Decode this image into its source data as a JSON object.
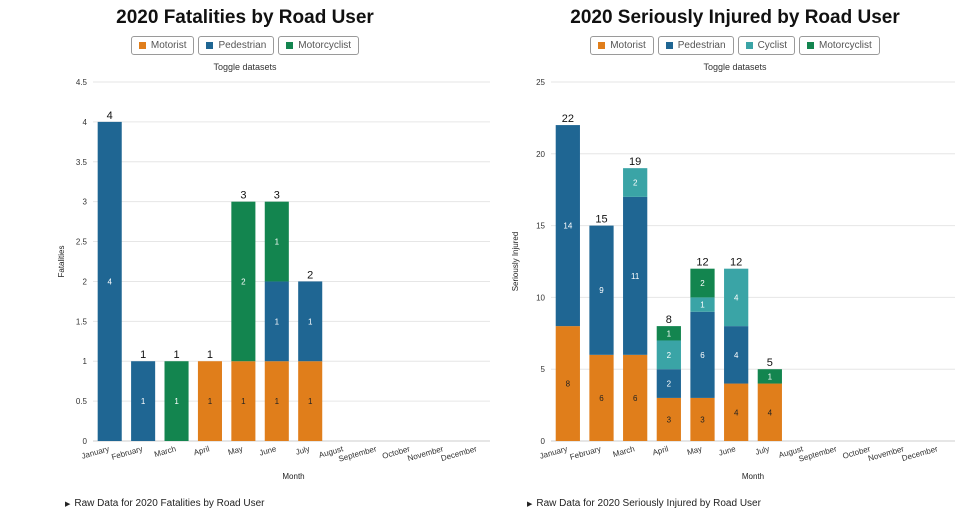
{
  "colors": {
    "motorist": "#e07e1b",
    "pedestrian": "#1f6693",
    "cyclist": "#3aa4a6",
    "motorcyclist": "#13854f",
    "grid": "#e6e6e6",
    "axis": "#555555"
  },
  "raw_toggle_icon": "triangle-right-icon",
  "fatalities": {
    "toggle_caption": "Toggle datasets",
    "raw_link": "Raw Data for 2020 Fatalities by Road User",
    "chart_data": {
      "type": "bar",
      "stacked": true,
      "title": "2020 Fatalities by Road User",
      "xlabel": "Month",
      "ylabel": "Fatalities",
      "ylim": [
        0,
        4.5
      ],
      "yticks": [
        "0",
        "0.5",
        "1",
        "1.5",
        "2",
        "2.5",
        "3",
        "3.5",
        "4",
        "4.5"
      ],
      "grid": true,
      "legend": "top",
      "categories": [
        "January",
        "February",
        "March",
        "April",
        "May",
        "June",
        "July",
        "August",
        "September",
        "October",
        "November",
        "December"
      ],
      "series": [
        {
          "name": "Motorist",
          "key": "motorist",
          "values": [
            0,
            0,
            0,
            1,
            1,
            1,
            1,
            0,
            0,
            0,
            0,
            0
          ]
        },
        {
          "name": "Pedestrian",
          "key": "pedestrian",
          "values": [
            4,
            1,
            0,
            0,
            0,
            1,
            1,
            0,
            0,
            0,
            0,
            0
          ]
        },
        {
          "name": "Motorcyclist",
          "key": "motorcyclist",
          "values": [
            0,
            0,
            1,
            0,
            2,
            1,
            0,
            0,
            0,
            0,
            0,
            0
          ]
        }
      ],
      "totals": [
        4,
        1,
        1,
        1,
        3,
        3,
        2,
        null,
        null,
        null,
        null,
        null
      ]
    }
  },
  "injured": {
    "toggle_caption": "Toggle datasets",
    "raw_link": "Raw Data for 2020 Seriously Injured by Road User",
    "chart_data": {
      "type": "bar",
      "stacked": true,
      "title": "2020 Seriously Injured by Road User",
      "xlabel": "Month",
      "ylabel": "Seriously Injured",
      "ylim": [
        0,
        25
      ],
      "yticks": [
        "0",
        "5",
        "10",
        "15",
        "20",
        "25"
      ],
      "grid": true,
      "legend": "top",
      "categories": [
        "January",
        "February",
        "March",
        "April",
        "May",
        "June",
        "July",
        "August",
        "September",
        "October",
        "November",
        "December"
      ],
      "series": [
        {
          "name": "Motorist",
          "key": "motorist",
          "values": [
            8,
            6,
            6,
            3,
            3,
            4,
            4,
            0,
            0,
            0,
            0,
            0
          ]
        },
        {
          "name": "Pedestrian",
          "key": "pedestrian",
          "values": [
            14,
            9,
            11,
            2,
            6,
            4,
            0,
            0,
            0,
            0,
            0,
            0
          ]
        },
        {
          "name": "Cyclist",
          "key": "cyclist",
          "values": [
            0,
            0,
            2,
            2,
            1,
            4,
            0,
            0,
            0,
            0,
            0,
            0
          ]
        },
        {
          "name": "Motorcyclist",
          "key": "motorcyclist",
          "values": [
            0,
            0,
            0,
            1,
            2,
            0,
            1,
            0,
            0,
            0,
            0,
            0
          ]
        }
      ],
      "totals": [
        22,
        15,
        19,
        8,
        12,
        12,
        5,
        null,
        null,
        null,
        null,
        null
      ]
    }
  }
}
